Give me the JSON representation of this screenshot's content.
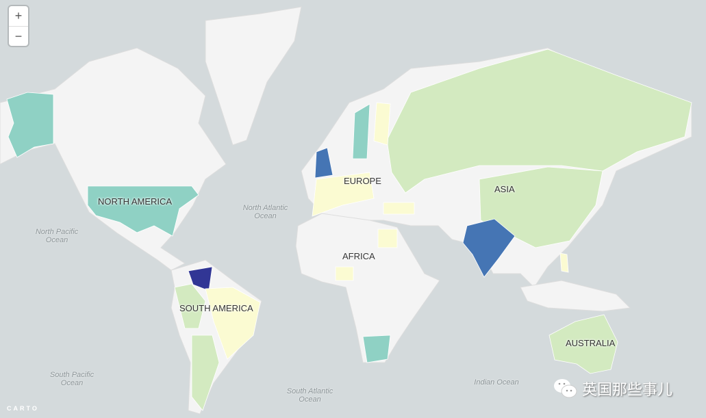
{
  "zoom_controls": {
    "zoom_in": "+",
    "zoom_out": "−"
  },
  "region_labels": {
    "north_america": "NORTH AMERICA",
    "south_america": "SOUTH AMERICA",
    "europe": "EUROPE",
    "africa": "AFRICA",
    "asia": "ASIA",
    "australia": "AUSTRALIA"
  },
  "ocean_labels": {
    "north_atlantic": "North Atlantic Ocean",
    "north_pacific": "North Pacific Ocean",
    "south_pacific": "South Pacific Ocean",
    "south_atlantic": "South Atlantic Ocean",
    "indian": "Indian Ocean"
  },
  "attribution": "CARTO",
  "watermark": {
    "text": "英国那些事儿",
    "icon": "wechat-icon"
  },
  "colors": {
    "ocean": "#d4dadc",
    "land": "#f4f4f4",
    "light_green": "#d3eac0",
    "yellow": "#fbfbd2",
    "teal": "#8fd1c4",
    "blue": "#4575b4",
    "dark_blue": "#313695"
  }
}
